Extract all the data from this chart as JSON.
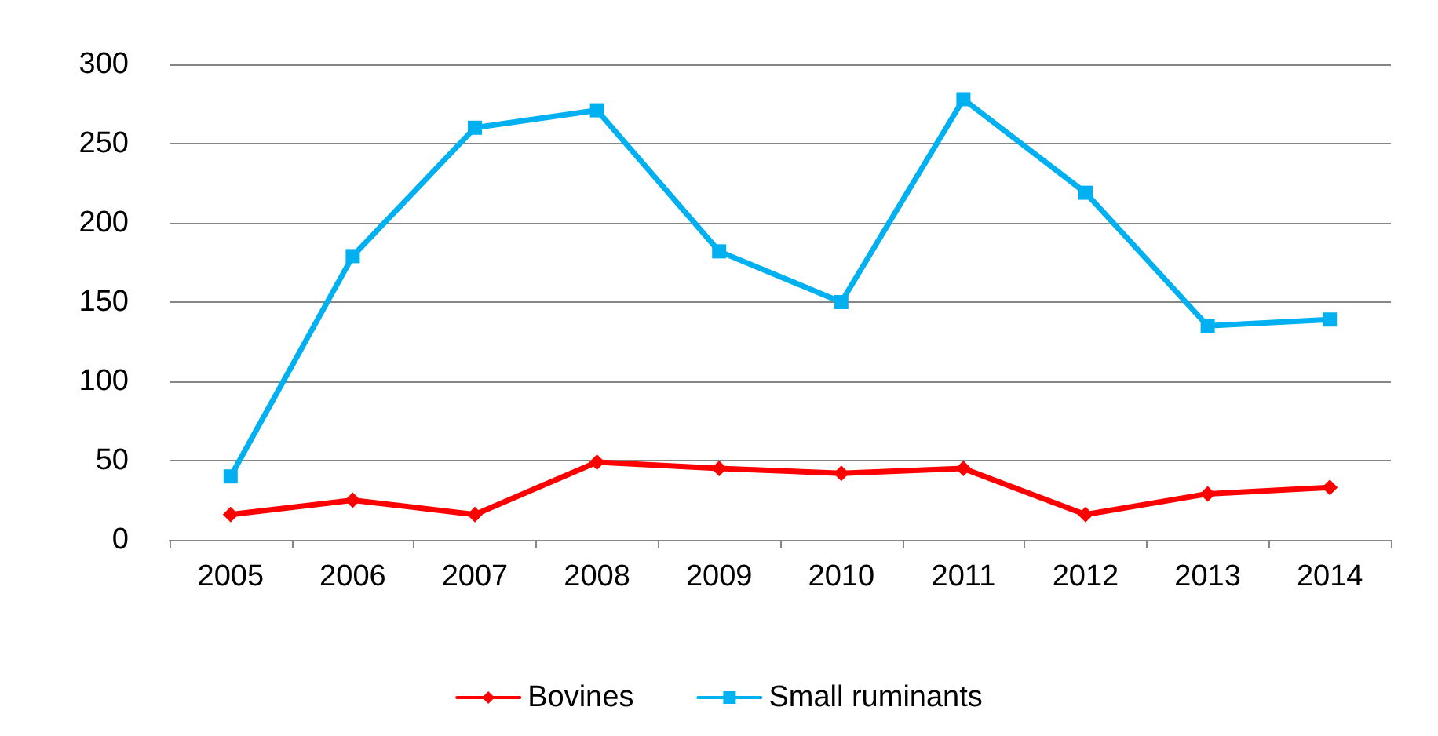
{
  "chart_data": {
    "type": "line",
    "categories": [
      "2005",
      "2006",
      "2007",
      "2008",
      "2009",
      "2010",
      "2011",
      "2012",
      "2013",
      "2014"
    ],
    "series": [
      {
        "name": "Bovines",
        "color": "#ff0000",
        "marker": "diamond",
        "values": [
          16,
          25,
          16,
          49,
          45,
          42,
          45,
          16,
          29,
          33
        ]
      },
      {
        "name": "Small ruminants",
        "color": "#00b0f0",
        "marker": "square",
        "values": [
          40,
          179,
          260,
          271,
          182,
          150,
          278,
          219,
          135,
          139
        ]
      }
    ],
    "ylim": [
      0,
      300
    ],
    "yticks": [
      0,
      50,
      100,
      150,
      200,
      250,
      300
    ],
    "grid": "y",
    "legend": "bottom",
    "line_style": "solid"
  }
}
